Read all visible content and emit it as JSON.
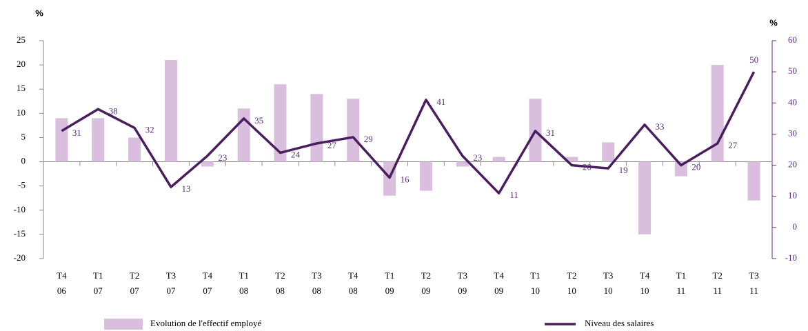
{
  "chart_data": {
    "type": "bar-line",
    "y_label": "%",
    "y2_label": "%",
    "categories": [
      [
        "T4",
        "06"
      ],
      [
        "T1",
        "07"
      ],
      [
        "T2",
        "07"
      ],
      [
        "T3",
        "07"
      ],
      [
        "T4",
        "07"
      ],
      [
        "T1",
        "08"
      ],
      [
        "T2",
        "08"
      ],
      [
        "T3",
        "08"
      ],
      [
        "T4",
        "08"
      ],
      [
        "T1",
        "09"
      ],
      [
        "T2",
        "09"
      ],
      [
        "T3",
        "09"
      ],
      [
        "T4",
        "09"
      ],
      [
        "T1",
        "10"
      ],
      [
        "T2",
        "10"
      ],
      [
        "T3",
        "10"
      ],
      [
        "T4",
        "10"
      ],
      [
        "T1",
        "11"
      ],
      [
        "T2",
        "11"
      ],
      [
        "T3",
        "11"
      ]
    ],
    "series": [
      {
        "name": "Evolution de l'effectif employé",
        "type": "bar",
        "color": "#d9bfdd",
        "axis": "y",
        "values": [
          9,
          9,
          5,
          21,
          -1,
          11,
          16,
          14,
          13,
          -7,
          -6,
          -1,
          1,
          13,
          1,
          4,
          -15,
          -3,
          20,
          -8
        ]
      },
      {
        "name": "Niveau des salaires",
        "type": "line",
        "color": "#4a1d5e",
        "axis": "y2",
        "data_labels": true,
        "values": [
          31,
          38,
          32,
          13,
          23,
          35,
          24,
          27,
          29,
          16,
          41,
          23,
          11,
          31,
          20,
          19,
          33,
          20,
          27,
          50
        ]
      }
    ],
    "ylim": [
      -20,
      25
    ],
    "yticks": [
      -20,
      -15,
      -10,
      -5,
      0,
      5,
      10,
      15,
      20,
      25
    ],
    "y2lim": [
      -10,
      60
    ],
    "y2ticks": [
      -10,
      0,
      10,
      20,
      30,
      40,
      50,
      60
    ],
    "grid": false,
    "legend": "bottom"
  }
}
